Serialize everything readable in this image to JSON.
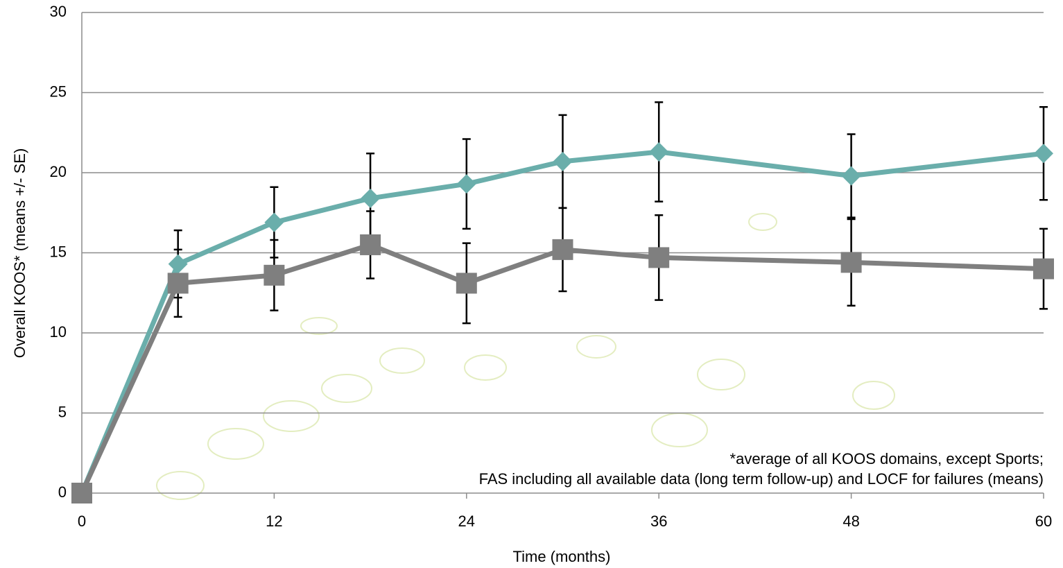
{
  "chart_data": {
    "type": "line",
    "x": [
      0,
      6,
      12,
      18,
      24,
      30,
      36,
      48,
      60
    ],
    "series": [
      {
        "color": "#6aaeab",
        "marker": "diamond",
        "values": [
          0,
          14.3,
          16.9,
          18.4,
          19.3,
          20.7,
          21.3,
          19.8,
          21.2
        ],
        "error": [
          null,
          2.1,
          2.2,
          2.8,
          2.8,
          2.9,
          3.1,
          2.6,
          2.9
        ]
      },
      {
        "color": "#7f7f7f",
        "marker": "square",
        "values": [
          0,
          13.1,
          13.6,
          15.5,
          13.1,
          15.2,
          14.7,
          14.4,
          14.0
        ],
        "error": [
          null,
          2.1,
          2.2,
          2.1,
          2.5,
          2.6,
          2.65,
          2.7,
          2.5
        ]
      }
    ],
    "xlim": [
      0,
      60
    ],
    "xticks": [
      0,
      12,
      24,
      36,
      48,
      60
    ],
    "ylim": [
      0,
      30
    ],
    "yticks": [
      0,
      5,
      10,
      15,
      20,
      25,
      30
    ],
    "grid": true,
    "x_label": "Time (months)",
    "y_label": "Overall KOOS* (means +/- SE)",
    "annotation": [
      "*average of all KOOS domains, except Sports;",
      "FAS including all available data (long term follow-up) and LOCF for failures (means)"
    ]
  }
}
